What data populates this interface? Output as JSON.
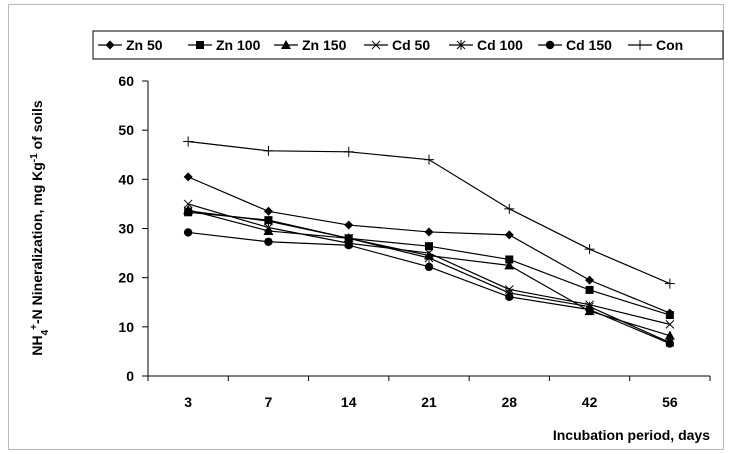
{
  "chart_data": {
    "type": "line",
    "title": "",
    "xlabel": "Incubation period, days",
    "ylabel": {
      "prefix": "NH",
      "sub": "4",
      "sup": "+",
      "mid": "-N Nineralization, mg Kg",
      "sup2": "-1",
      "suffix": " of soils"
    },
    "categories": [
      "3",
      "7",
      "14",
      "21",
      "28",
      "42",
      "56"
    ],
    "ylim": [
      0,
      60
    ],
    "yticks": [
      0,
      10,
      20,
      30,
      40,
      50,
      60
    ],
    "grid": false,
    "legend_position": "top",
    "series": [
      {
        "name": "Zn 50",
        "marker": "diamond",
        "values": [
          40.5,
          33.5,
          30.7,
          29.3,
          28.7,
          19.5,
          12.8
        ]
      },
      {
        "name": "Zn 100",
        "marker": "square",
        "values": [
          33.3,
          31.7,
          28.0,
          26.4,
          23.7,
          17.5,
          12.4
        ]
      },
      {
        "name": "Zn 150",
        "marker": "triangle",
        "values": [
          33.8,
          29.5,
          28.0,
          24.5,
          22.5,
          13.2,
          8.2
        ]
      },
      {
        "name": "Cd 50",
        "marker": "x",
        "values": [
          35.0,
          30.2,
          27.0,
          25.0,
          17.6,
          14.5,
          10.5
        ]
      },
      {
        "name": "Cd 100",
        "marker": "asterisk",
        "values": [
          33.6,
          31.5,
          28.0,
          24.0,
          16.9,
          14.1,
          6.8
        ]
      },
      {
        "name": "Cd 150",
        "marker": "circle",
        "values": [
          29.2,
          27.3,
          26.6,
          22.2,
          16.1,
          13.5,
          6.6
        ]
      },
      {
        "name": "Con",
        "marker": "plus",
        "values": [
          47.7,
          45.8,
          45.6,
          44.0,
          34.0,
          25.8,
          18.8
        ]
      }
    ]
  }
}
